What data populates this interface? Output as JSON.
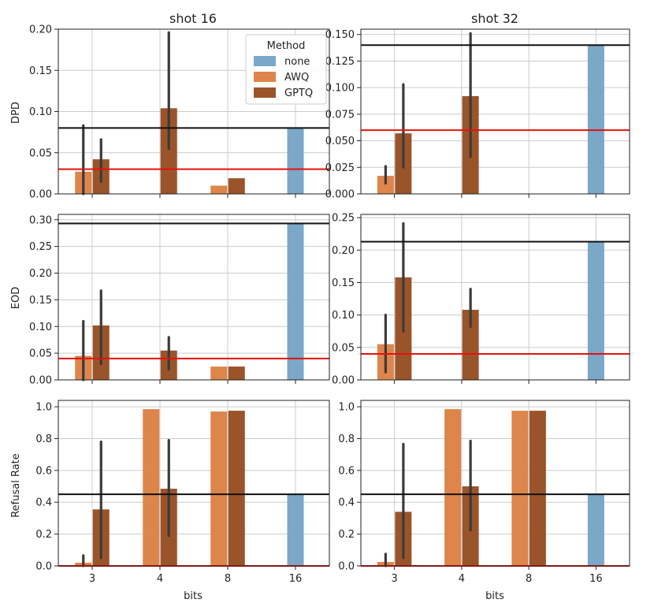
{
  "colors": {
    "none": "#7ba7c9",
    "AWQ": "#dd854a",
    "GPTQ": "#9a542a",
    "black_line": "#111111",
    "red_line": "#e3120b",
    "grid": "#cccccc",
    "errbar": "#3a3a3a"
  },
  "legend": {
    "title": "Method",
    "entries": [
      {
        "name": "none",
        "color": "#7ba7c9"
      },
      {
        "name": "AWQ",
        "color": "#dd854a"
      },
      {
        "name": "GPTQ",
        "color": "#9a542a"
      }
    ],
    "placement": "top-right of shot 16 DPD panel"
  },
  "chart_data": {
    "type": "bar",
    "col_titles": [
      "shot 16",
      "shot 32"
    ],
    "row_labels": [
      "DPD",
      "EOD",
      "Refusal Rate"
    ],
    "xlabel": "bits",
    "categories": [
      "3",
      "4",
      "8",
      "16"
    ],
    "panels": [
      {
        "id": "dpd-shot16",
        "row": 0,
        "col": 0,
        "ylim": [
          0,
          0.2
        ],
        "yticks": [
          0,
          0.05,
          0.1,
          0.15,
          0.2
        ],
        "yticklabels": [
          "0.00",
          "0.05",
          "0.10",
          "0.15",
          "0.20"
        ],
        "hlines": [
          {
            "y": 0.08,
            "color": "black"
          },
          {
            "y": 0.03,
            "color": "red"
          }
        ],
        "bars": [
          {
            "bits": "3",
            "method": "AWQ",
            "value": 0.027,
            "err": [
              0,
              0.083
            ]
          },
          {
            "bits": "3",
            "method": "GPTQ",
            "value": 0.042,
            "err": [
              0.015,
              0.066
            ]
          },
          {
            "bits": "4",
            "method": "GPTQ",
            "value": 0.104,
            "err": [
              0.055,
              0.196
            ]
          },
          {
            "bits": "8",
            "method": "AWQ",
            "value": 0.01,
            "err": null
          },
          {
            "bits": "8",
            "method": "GPTQ",
            "value": 0.019,
            "err": null
          },
          {
            "bits": "16",
            "method": "none",
            "value": 0.08,
            "err": null
          }
        ]
      },
      {
        "id": "dpd-shot32",
        "row": 0,
        "col": 1,
        "ylim": [
          0,
          0.155
        ],
        "yticks": [
          0,
          0.025,
          0.05,
          0.075,
          0.1,
          0.125,
          0.15
        ],
        "yticklabels": [
          "0.000",
          "0.025",
          "0.050",
          "0.075",
          "0.100",
          "0.125",
          "0.150"
        ],
        "hlines": [
          {
            "y": 0.14,
            "color": "black"
          },
          {
            "y": 0.06,
            "color": "red"
          }
        ],
        "bars": [
          {
            "bits": "3",
            "method": "AWQ",
            "value": 0.017,
            "err": [
              0.01,
              0.026
            ]
          },
          {
            "bits": "3",
            "method": "GPTQ",
            "value": 0.057,
            "err": [
              0.025,
              0.103
            ]
          },
          {
            "bits": "4",
            "method": "GPTQ",
            "value": 0.092,
            "err": [
              0.035,
              0.151
            ]
          },
          {
            "bits": "16",
            "method": "none",
            "value": 0.14,
            "err": null
          }
        ]
      },
      {
        "id": "eod-shot16",
        "row": 1,
        "col": 0,
        "ylim": [
          0,
          0.31
        ],
        "yticks": [
          0,
          0.05,
          0.1,
          0.15,
          0.2,
          0.25,
          0.3
        ],
        "yticklabels": [
          "0.00",
          "0.05",
          "0.10",
          "0.15",
          "0.20",
          "0.25",
          "0.30"
        ],
        "hlines": [
          {
            "y": 0.293,
            "color": "black"
          },
          {
            "y": 0.04,
            "color": "red"
          }
        ],
        "bars": [
          {
            "bits": "3",
            "method": "AWQ",
            "value": 0.045,
            "err": [
              0,
              0.11
            ]
          },
          {
            "bits": "3",
            "method": "GPTQ",
            "value": 0.102,
            "err": [
              0.03,
              0.167
            ]
          },
          {
            "bits": "4",
            "method": "GPTQ",
            "value": 0.055,
            "err": [
              0.02,
              0.08
            ]
          },
          {
            "bits": "8",
            "method": "AWQ",
            "value": 0.025,
            "err": null
          },
          {
            "bits": "8",
            "method": "GPTQ",
            "value": 0.025,
            "err": null
          },
          {
            "bits": "16",
            "method": "none",
            "value": 0.293,
            "err": null
          }
        ]
      },
      {
        "id": "eod-shot32",
        "row": 1,
        "col": 1,
        "ylim": [
          0,
          0.255
        ],
        "yticks": [
          0,
          0.05,
          0.1,
          0.15,
          0.2,
          0.25
        ],
        "yticklabels": [
          "0.00",
          "0.05",
          "0.10",
          "0.15",
          "0.20",
          "0.25"
        ],
        "hlines": [
          {
            "y": 0.213,
            "color": "black"
          },
          {
            "y": 0.04,
            "color": "red"
          }
        ],
        "bars": [
          {
            "bits": "3",
            "method": "AWQ",
            "value": 0.055,
            "err": [
              0.012,
              0.1
            ]
          },
          {
            "bits": "3",
            "method": "GPTQ",
            "value": 0.158,
            "err": [
              0.075,
              0.241
            ]
          },
          {
            "bits": "4",
            "method": "GPTQ",
            "value": 0.108,
            "err": [
              0.082,
              0.14
            ]
          },
          {
            "bits": "16",
            "method": "none",
            "value": 0.213,
            "err": null
          }
        ]
      },
      {
        "id": "refusal-shot16",
        "row": 2,
        "col": 0,
        "ylim": [
          0,
          1.04
        ],
        "yticks": [
          0,
          0.2,
          0.4,
          0.6,
          0.8,
          1.0
        ],
        "yticklabels": [
          "0.0",
          "0.2",
          "0.4",
          "0.6",
          "0.8",
          "1.0"
        ],
        "hlines": [
          {
            "y": 0.45,
            "color": "black"
          },
          {
            "y": 0.0,
            "color": "red"
          }
        ],
        "bars": [
          {
            "bits": "3",
            "method": "AWQ",
            "value": 0.02,
            "err": [
              0,
              0.065
            ]
          },
          {
            "bits": "3",
            "method": "GPTQ",
            "value": 0.355,
            "err": [
              0.05,
              0.78
            ]
          },
          {
            "bits": "4",
            "method": "AWQ",
            "value": 0.985,
            "err": null
          },
          {
            "bits": "4",
            "method": "GPTQ",
            "value": 0.485,
            "err": [
              0.19,
              0.79
            ]
          },
          {
            "bits": "8",
            "method": "AWQ",
            "value": 0.97,
            "err": null
          },
          {
            "bits": "8",
            "method": "GPTQ",
            "value": 0.975,
            "err": null
          },
          {
            "bits": "16",
            "method": "none",
            "value": 0.45,
            "err": null
          }
        ]
      },
      {
        "id": "refusal-shot32",
        "row": 2,
        "col": 1,
        "ylim": [
          0,
          1.04
        ],
        "yticks": [
          0,
          0.2,
          0.4,
          0.6,
          0.8,
          1.0
        ],
        "yticklabels": [
          "0.0",
          "0.2",
          "0.4",
          "0.6",
          "0.8",
          "1.0"
        ],
        "hlines": [
          {
            "y": 0.45,
            "color": "black"
          },
          {
            "y": 0.0,
            "color": "red"
          }
        ],
        "bars": [
          {
            "bits": "3",
            "method": "AWQ",
            "value": 0.025,
            "err": [
              0,
              0.075
            ]
          },
          {
            "bits": "3",
            "method": "GPTQ",
            "value": 0.34,
            "err": [
              0.05,
              0.765
            ]
          },
          {
            "bits": "4",
            "method": "AWQ",
            "value": 0.985,
            "err": null
          },
          {
            "bits": "4",
            "method": "GPTQ",
            "value": 0.5,
            "err": [
              0.225,
              0.785
            ]
          },
          {
            "bits": "8",
            "method": "AWQ",
            "value": 0.975,
            "err": null
          },
          {
            "bits": "8",
            "method": "GPTQ",
            "value": 0.975,
            "err": null
          },
          {
            "bits": "16",
            "method": "none",
            "value": 0.45,
            "err": null
          }
        ]
      }
    ]
  }
}
